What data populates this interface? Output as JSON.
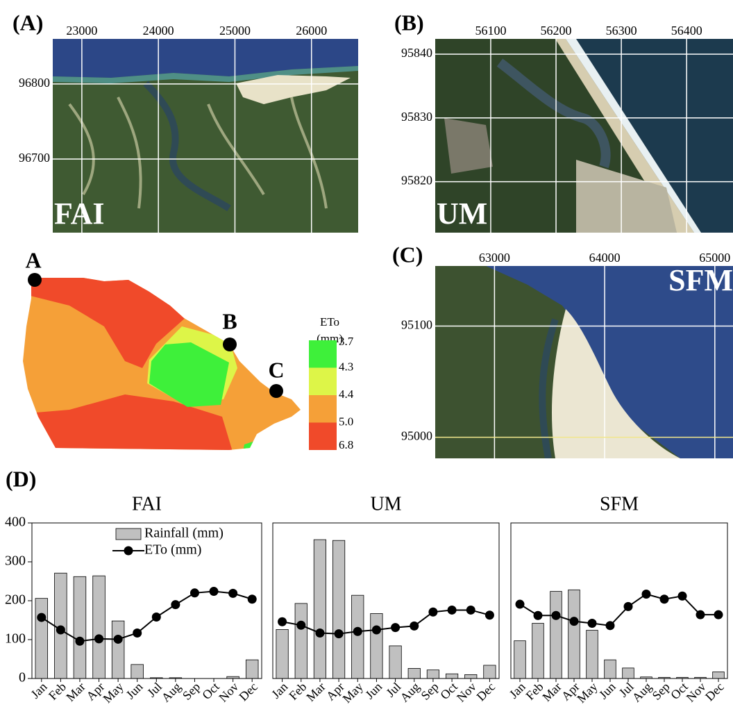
{
  "panels": [
    {
      "label": "(A)",
      "site": "FAI",
      "xticks": [
        23000,
        24000,
        25000,
        26000
      ],
      "yticks": [
        96800,
        96700
      ],
      "xlim": [
        22620,
        26610
      ],
      "ylim": [
        96602,
        96860
      ]
    },
    {
      "label": "(B)",
      "site": "UM",
      "xticks": [
        56100,
        56200,
        56300,
        56400
      ],
      "yticks": [
        95840,
        95830,
        95820
      ],
      "xlim": [
        56015,
        56471
      ],
      "ylim": [
        95812,
        95842.4
      ]
    },
    {
      "label": "(C)",
      "site": "SFM",
      "xticks": [
        63000,
        64000,
        65000
      ],
      "yticks": [
        95100,
        95000
      ],
      "xlim": [
        62462,
        65165
      ],
      "ylim": [
        94981,
        95154
      ]
    }
  ],
  "eto_map": {
    "points": [
      "A",
      "B",
      "C"
    ],
    "legend_title": [
      "ETo",
      "(mm)"
    ],
    "breaks": [
      3.7,
      4.3,
      4.4,
      {
        "value": 5,
        "label": "5.0"
      },
      6.8
    ],
    "colors": [
      "#3ef03a",
      "#ddf548",
      "#f5a038",
      "#f04a2a"
    ]
  },
  "panel_d_label": "(D)",
  "chart_data": [
    {
      "type": "combo",
      "title": "FAI",
      "categories": [
        "Jan",
        "Feb",
        "Mar",
        "Apr",
        "May",
        "Jun",
        "Jul",
        "Aug",
        "Sep",
        "Oct",
        "Nov",
        "Dec"
      ],
      "series": [
        {
          "name": "Rainfall (mm)",
          "kind": "bar",
          "color": "#c0c0c0",
          "values": [
            206,
            271,
            262,
            264,
            148,
            36,
            2,
            2,
            0,
            0,
            5,
            48
          ]
        },
        {
          "name": "ETo (mm)",
          "kind": "line",
          "color": "#000000",
          "values": [
            157,
            125,
            96,
            102,
            101,
            117,
            158,
            190,
            220,
            224,
            219,
            204
          ]
        }
      ],
      "ylim": [
        0,
        400
      ],
      "yticks": [
        0,
        100,
        200,
        300,
        400
      ],
      "legend": "upper right"
    },
    {
      "type": "combo",
      "title": "UM",
      "categories": [
        "Jan",
        "Feb",
        "Mar",
        "Apr",
        "May",
        "Jun",
        "Jul",
        "Aug",
        "Sep",
        "Oct",
        "Nov",
        "Dec"
      ],
      "series": [
        {
          "kind": "bar",
          "color": "#c0c0c0",
          "values": [
            126,
            193,
            357,
            355,
            214,
            167,
            84,
            26,
            22,
            12,
            10,
            34
          ]
        },
        {
          "kind": "line",
          "color": "#000000",
          "values": [
            146,
            137,
            117,
            115,
            121,
            125,
            131,
            135,
            171,
            176,
            176,
            163
          ]
        }
      ],
      "ylim": [
        0,
        400
      ]
    },
    {
      "type": "combo",
      "title": "SFM",
      "categories": [
        "Jan",
        "Feb",
        "Mar",
        "Apr",
        "May",
        "Jun",
        "Jul",
        "Aug",
        "Sep",
        "Oct",
        "Nov",
        "Dec"
      ],
      "series": [
        {
          "kind": "bar",
          "color": "#c0c0c0",
          "values": [
            97,
            142,
            224,
            228,
            124,
            48,
            27,
            4,
            3,
            3,
            3,
            17
          ]
        },
        {
          "kind": "line",
          "color": "#000000",
          "values": [
            191,
            162,
            162,
            147,
            142,
            136,
            185,
            217,
            204,
            212,
            164,
            164
          ]
        }
      ],
      "ylim": [
        0,
        400
      ]
    }
  ]
}
